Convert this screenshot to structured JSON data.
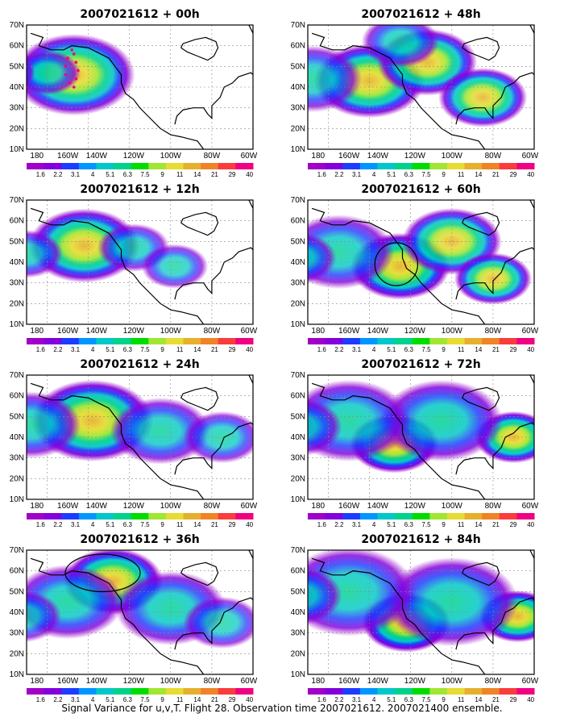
{
  "caption": "Signal Variance for u,v,T. Flight 28. Observation time 2007021612. 2007021400 ensemble.",
  "x_ticks": [
    "180",
    "160W",
    "140W",
    "120W",
    "100W",
    "80W",
    "60W"
  ],
  "y_ticks": [
    "10N",
    "20N",
    "30N",
    "40N",
    "50N",
    "60N",
    "70N"
  ],
  "colorbar": {
    "labels": [
      "1.6",
      "2.2",
      "3.1",
      "4",
      "5.1",
      "6.3",
      "7.5",
      "9",
      "11",
      "14",
      "21",
      "29",
      "40"
    ],
    "colors": [
      "#a000c8",
      "#8200dc",
      "#1e3cff",
      "#0096ff",
      "#00c8c8",
      "#00d28c",
      "#00dc00",
      "#a0e632",
      "#e6dc32",
      "#e6af2d",
      "#f08228",
      "#fa3c3c",
      "#f00082"
    ]
  },
  "panels": [
    {
      "id": "p00",
      "title": "2007021612 + 00h",
      "blobs": [
        {
          "lon": -147,
          "lat": 46,
          "r": 22,
          "level": 0.75
        },
        {
          "lon": -160,
          "lat": 47,
          "r": 12,
          "level": 0.5
        },
        {
          "lon": -178,
          "lat": 47,
          "r": 9,
          "level": 0.5
        }
      ],
      "flight_track": [
        [
          -148,
          58
        ],
        [
          -150,
          54
        ],
        [
          -151,
          50
        ],
        [
          -151,
          46
        ],
        [
          -149,
          42
        ],
        [
          -147,
          40
        ],
        [
          -146,
          44
        ],
        [
          -145,
          48
        ],
        [
          -146,
          52
        ],
        [
          -147,
          56
        ]
      ],
      "circle": null
    },
    {
      "id": "p12",
      "title": "2007021612 + 12h",
      "blobs": [
        {
          "lon": -142,
          "lat": 48,
          "r": 20,
          "level": 0.8
        },
        {
          "lon": -170,
          "lat": 44,
          "r": 13,
          "level": 0.5
        },
        {
          "lon": -118,
          "lat": 47,
          "r": 13,
          "level": 0.45
        },
        {
          "lon": -98,
          "lat": 38,
          "r": 12,
          "level": 0.4
        }
      ],
      "flight_track": [],
      "circle": null
    },
    {
      "id": "p24",
      "title": "2007021612 + 24h",
      "blobs": [
        {
          "lon": -138,
          "lat": 48,
          "r": 22,
          "level": 0.85
        },
        {
          "lon": -168,
          "lat": 46,
          "r": 18,
          "level": 0.55
        },
        {
          "lon": -105,
          "lat": 43,
          "r": 18,
          "level": 0.55
        },
        {
          "lon": -75,
          "lat": 40,
          "r": 14,
          "level": 0.45
        }
      ],
      "flight_track": [],
      "circle": null
    },
    {
      "id": "p36",
      "title": "2007021612 + 36h",
      "blobs": [
        {
          "lon": -128,
          "lat": 55,
          "r": 18,
          "level": 0.85
        },
        {
          "lon": -150,
          "lat": 45,
          "r": 20,
          "level": 0.6
        },
        {
          "lon": -100,
          "lat": 42,
          "r": 20,
          "level": 0.6
        },
        {
          "lon": -172,
          "lat": 38,
          "r": 14,
          "level": 0.45
        },
        {
          "lon": -75,
          "lat": 35,
          "r": 14,
          "level": 0.4
        }
      ],
      "flight_track": [],
      "circle": {
        "lon": -133,
        "lat": 59,
        "rx": 14,
        "ry": 7
      }
    },
    {
      "id": "p48",
      "title": "2007021612 + 48h",
      "blobs": [
        {
          "lon": -140,
          "lat": 43,
          "r": 20,
          "level": 0.8
        },
        {
          "lon": -112,
          "lat": 52,
          "r": 18,
          "level": 0.75
        },
        {
          "lon": -85,
          "lat": 35,
          "r": 16,
          "level": 0.7
        },
        {
          "lon": -168,
          "lat": 44,
          "r": 18,
          "level": 0.5
        },
        {
          "lon": -125,
          "lat": 62,
          "r": 14,
          "level": 0.5
        }
      ],
      "flight_track": [],
      "circle": null
    },
    {
      "id": "p60",
      "title": "2007021612 + 60h",
      "blobs": [
        {
          "lon": -125,
          "lat": 38,
          "r": 18,
          "level": 0.9
        },
        {
          "lon": -100,
          "lat": 50,
          "r": 18,
          "level": 0.7
        },
        {
          "lon": -80,
          "lat": 32,
          "r": 14,
          "level": 0.7
        },
        {
          "lon": -155,
          "lat": 45,
          "r": 20,
          "level": 0.55
        },
        {
          "lon": -175,
          "lat": 42,
          "r": 14,
          "level": 0.5
        }
      ],
      "flight_track": [],
      "circle": {
        "lon": -127,
        "lat": 39,
        "rx": 8,
        "ry": 8
      }
    },
    {
      "id": "p72",
      "title": "2007021612 + 72h",
      "blobs": [
        {
          "lon": -128,
          "lat": 37,
          "r": 16,
          "level": 0.95
        },
        {
          "lon": -70,
          "lat": 40,
          "r": 14,
          "level": 0.85
        },
        {
          "lon": -105,
          "lat": 48,
          "r": 22,
          "level": 0.65
        },
        {
          "lon": -150,
          "lat": 48,
          "r": 22,
          "level": 0.6
        },
        {
          "lon": -175,
          "lat": 45,
          "r": 16,
          "level": 0.55
        }
      ],
      "flight_track": [],
      "circle": null
    },
    {
      "id": "p84",
      "title": "2007021612 + 84h",
      "blobs": [
        {
          "lon": -122,
          "lat": 35,
          "r": 16,
          "level": 1.0
        },
        {
          "lon": -68,
          "lat": 38,
          "r": 14,
          "level": 0.9
        },
        {
          "lon": -100,
          "lat": 45,
          "r": 24,
          "level": 0.65
        },
        {
          "lon": -150,
          "lat": 50,
          "r": 24,
          "level": 0.6
        },
        {
          "lon": -175,
          "lat": 48,
          "r": 16,
          "level": 0.55
        }
      ],
      "flight_track": [],
      "circle": null
    }
  ]
}
